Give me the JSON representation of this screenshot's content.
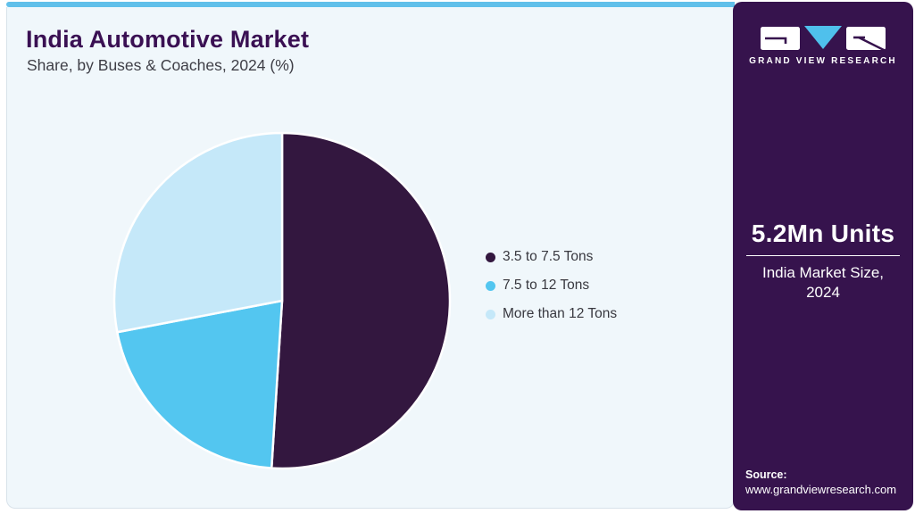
{
  "header": {
    "title": "India Automotive Market",
    "subtitle": "Share, by Buses & Coaches, 2024 (%)"
  },
  "brand": {
    "wordmark": "GRAND VIEW RESEARCH",
    "logo_icon": "gvr-logo"
  },
  "sidebar": {
    "market_size_value": "5.2Mn Units",
    "market_size_label": "India Market Size, 2024",
    "source_label": "Source:",
    "source_url": "www.grandviewresearch.com"
  },
  "colors": {
    "top_bar": "#61C0EA",
    "card_bg": "#F0F7FB",
    "sidebar_bg": "#36134D",
    "title_purple": "#3A1053",
    "slice_stroke": "#FFFFFF"
  },
  "chart_data": {
    "type": "pie",
    "title": "India Automotive Market Share, by Buses & Coaches, 2024 (%)",
    "categories": [
      "3.5 to 7.5 Tons",
      "7.5 to 12 Tons",
      "More than 12 Tons"
    ],
    "values": [
      51,
      21,
      28
    ],
    "colors": [
      "#33173F",
      "#53C6F0",
      "#C5E8F9"
    ],
    "start_angle_deg": 0,
    "direction": "clockwise",
    "legend_position": "right",
    "data_labels_shown": false
  }
}
